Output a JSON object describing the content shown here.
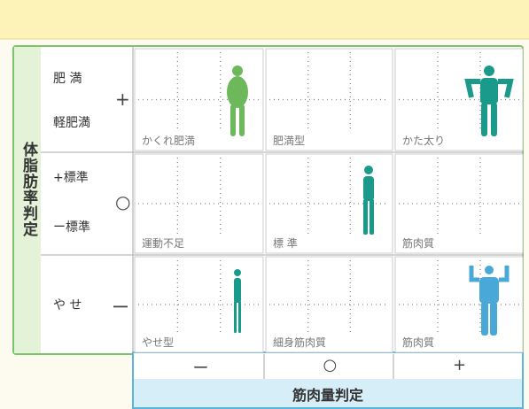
{
  "vertical_axis": {
    "title": "体脂肪率判定",
    "rows": [
      {
        "symbol": "+",
        "levels": [
          "肥 満",
          "軽肥満"
        ]
      },
      {
        "symbol": "○",
        "levels": [
          "+標準",
          "ー標準"
        ]
      },
      {
        "symbol": "ー",
        "levels": [
          "や せ"
        ]
      }
    ]
  },
  "horizontal_axis": {
    "title": "筋肉量判定",
    "symbols": [
      "ー",
      "○",
      "+"
    ]
  },
  "cells": [
    [
      "かくれ肥満",
      "肥満型",
      "かた太り"
    ],
    [
      "運動不足",
      "標 準",
      "筋肉質"
    ],
    [
      "やせ型",
      "細身筋肉質",
      "筋肉質"
    ]
  ]
}
